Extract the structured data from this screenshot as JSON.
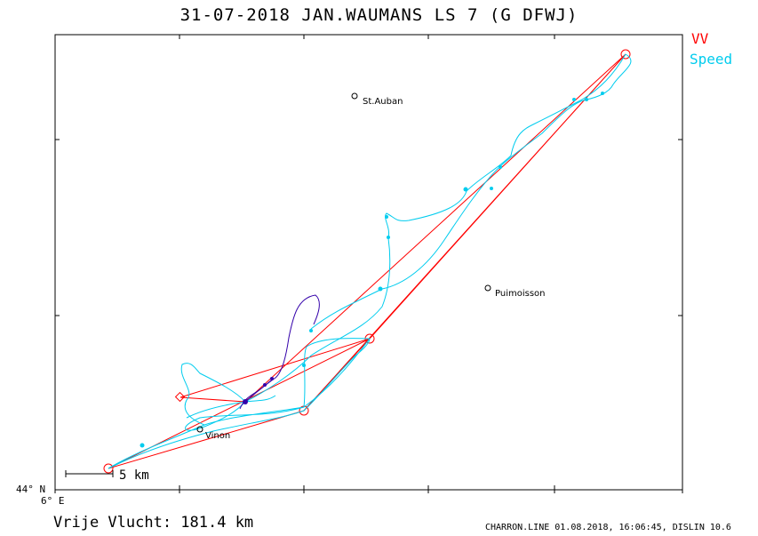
{
  "title": "31-07-2018   JAN.WAUMANS   LS 7 (G DFWJ)",
  "legend": {
    "vv": {
      "label": "VV",
      "color": "#ff0000"
    },
    "speed": {
      "label": "Speed",
      "color": "#00ccee"
    }
  },
  "axes": {
    "lat_label": "44° N",
    "lon_label": "6° E"
  },
  "towns": [
    {
      "name": "St.Auban"
    },
    {
      "name": "Puimoisson"
    },
    {
      "name": "Vinon"
    }
  ],
  "scale_bar": {
    "label": "5 km"
  },
  "distance_text": "Vrije Vlucht:  181.4 km",
  "footer": "CHARRON.LINE 01.08.2018, 16:06:45, DISLIN 10.6",
  "colors": {
    "task": "#ff0000",
    "track": "#00ccee",
    "track_dark": "#3300aa"
  }
}
